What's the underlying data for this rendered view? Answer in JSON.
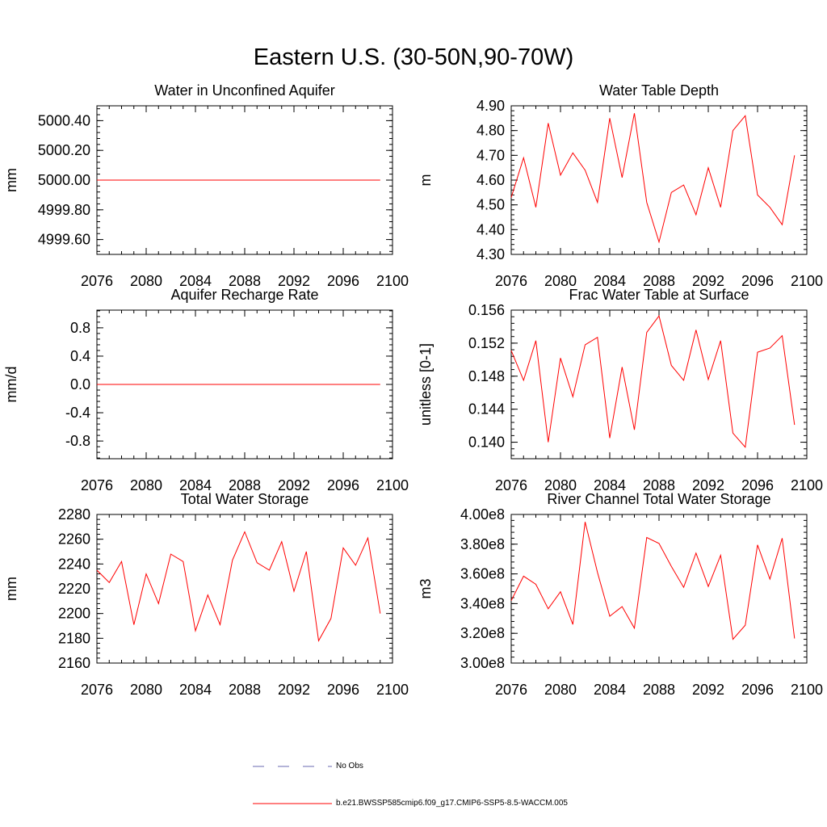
{
  "title": "Eastern U.S. (30-50N,90-70W)",
  "colors": {
    "model": "#ff0000",
    "obs": "#6a6ab0",
    "axis": "#000000"
  },
  "legend": {
    "obs_label": "No Obs",
    "model_label": "b.e21.BWSSP585cmip6.f09_g17.CMIP6-SSP5-8.5-WACCM.005"
  },
  "chart_data": [
    {
      "type": "line",
      "title": "Water in Unconfined Aquifer",
      "ylabel": "mm",
      "xlim": [
        2076,
        2100
      ],
      "ylim": [
        4999.5,
        5000.5
      ],
      "xticks": [
        2076,
        2080,
        2084,
        2088,
        2092,
        2096,
        2100
      ],
      "yticks": [
        4999.6,
        4999.8,
        5000.0,
        5000.2,
        5000.4
      ],
      "ytick_labels": [
        "4999.60",
        "4999.80",
        "5000.00",
        "5000.20",
        "5000.40"
      ],
      "x": [
        2076,
        2077,
        2078,
        2079,
        2080,
        2081,
        2082,
        2083,
        2084,
        2085,
        2086,
        2087,
        2088,
        2089,
        2090,
        2091,
        2092,
        2093,
        2094,
        2095,
        2096,
        2097,
        2098,
        2099
      ],
      "values": [
        5000.0,
        5000.0,
        5000.0,
        5000.0,
        5000.0,
        5000.0,
        5000.0,
        5000.0,
        5000.0,
        5000.0,
        5000.0,
        5000.0,
        5000.0,
        5000.0,
        5000.0,
        5000.0,
        5000.0,
        5000.0,
        5000.0,
        5000.0,
        5000.0,
        5000.0,
        5000.0,
        5000.0
      ]
    },
    {
      "type": "line",
      "title": "Water Table Depth",
      "ylabel": "m",
      "xlim": [
        2076,
        2100
      ],
      "ylim": [
        4.3,
        4.9
      ],
      "xticks": [
        2076,
        2080,
        2084,
        2088,
        2092,
        2096,
        2100
      ],
      "yticks": [
        4.3,
        4.4,
        4.5,
        4.6,
        4.7,
        4.8,
        4.9
      ],
      "ytick_labels": [
        "4.30",
        "4.40",
        "4.50",
        "4.60",
        "4.70",
        "4.80",
        "4.90"
      ],
      "x": [
        2076,
        2077,
        2078,
        2079,
        2080,
        2081,
        2082,
        2083,
        2084,
        2085,
        2086,
        2087,
        2088,
        2089,
        2090,
        2091,
        2092,
        2093,
        2094,
        2095,
        2096,
        2097,
        2098,
        2099
      ],
      "values": [
        4.53,
        4.69,
        4.49,
        4.83,
        4.62,
        4.71,
        4.64,
        4.51,
        4.85,
        4.61,
        4.87,
        4.51,
        4.35,
        4.55,
        4.58,
        4.46,
        4.65,
        4.49,
        4.8,
        4.86,
        4.54,
        4.49,
        4.42,
        4.7
      ]
    },
    {
      "type": "line",
      "title": "Aquifer Recharge Rate",
      "ylabel": "mm/d",
      "xlim": [
        2076,
        2100
      ],
      "ylim": [
        -1.05,
        1.05
      ],
      "xticks": [
        2076,
        2080,
        2084,
        2088,
        2092,
        2096,
        2100
      ],
      "yticks": [
        -0.8,
        -0.4,
        0.0,
        0.4,
        0.8
      ],
      "ytick_labels": [
        "-0.8",
        "-0.4",
        "0.0",
        "0.4",
        "0.8"
      ],
      "x": [
        2076,
        2077,
        2078,
        2079,
        2080,
        2081,
        2082,
        2083,
        2084,
        2085,
        2086,
        2087,
        2088,
        2089,
        2090,
        2091,
        2092,
        2093,
        2094,
        2095,
        2096,
        2097,
        2098,
        2099
      ],
      "values": [
        0,
        0,
        0,
        0,
        0,
        0,
        0,
        0,
        0,
        0,
        0,
        0,
        0,
        0,
        0,
        0,
        0,
        0,
        0,
        0,
        0,
        0,
        0,
        0
      ]
    },
    {
      "type": "line",
      "title": "Frac Water Table at Surface",
      "ylabel": "unitless [0-1]",
      "xlim": [
        2076,
        2100
      ],
      "ylim": [
        0.138,
        0.156
      ],
      "xticks": [
        2076,
        2080,
        2084,
        2088,
        2092,
        2096,
        2100
      ],
      "yticks": [
        0.14,
        0.144,
        0.148,
        0.152,
        0.156
      ],
      "ytick_labels": [
        "0.140",
        "0.144",
        "0.148",
        "0.152",
        "0.156"
      ],
      "x": [
        2076,
        2077,
        2078,
        2079,
        2080,
        2081,
        2082,
        2083,
        2084,
        2085,
        2086,
        2087,
        2088,
        2089,
        2090,
        2091,
        2092,
        2093,
        2094,
        2095,
        2096,
        2097,
        2098,
        2099
      ],
      "values": [
        0.1511,
        0.1475,
        0.1523,
        0.14,
        0.1502,
        0.1455,
        0.1518,
        0.1527,
        0.1405,
        0.1491,
        0.1415,
        0.1533,
        0.1553,
        0.1493,
        0.1475,
        0.1536,
        0.1476,
        0.1523,
        0.1411,
        0.1394,
        0.1509,
        0.1514,
        0.1529,
        0.1421
      ]
    },
    {
      "type": "line",
      "title": "Total Water Storage",
      "ylabel": "mm",
      "xlim": [
        2076,
        2100
      ],
      "ylim": [
        2160,
        2280
      ],
      "xticks": [
        2076,
        2080,
        2084,
        2088,
        2092,
        2096,
        2100
      ],
      "yticks": [
        2160,
        2180,
        2200,
        2220,
        2240,
        2260,
        2280
      ],
      "ytick_labels": [
        "2160",
        "2180",
        "2200",
        "2220",
        "2240",
        "2260",
        "2280"
      ],
      "x": [
        2076,
        2077,
        2078,
        2079,
        2080,
        2081,
        2082,
        2083,
        2084,
        2085,
        2086,
        2087,
        2088,
        2089,
        2090,
        2091,
        2092,
        2093,
        2094,
        2095,
        2096,
        2097,
        2098,
        2099
      ],
      "values": [
        2235,
        2225,
        2242,
        2191,
        2232,
        2208,
        2248,
        2242,
        2186,
        2215,
        2191,
        2243,
        2266,
        2241,
        2235,
        2258,
        2218,
        2250,
        2178,
        2196,
        2253,
        2239,
        2261,
        2200
      ]
    },
    {
      "type": "line",
      "title": "River Channel Total Water Storage",
      "ylabel": "m3",
      "xlim": [
        2076,
        2100
      ],
      "ylim": [
        300000000,
        400000000
      ],
      "xticks": [
        2076,
        2080,
        2084,
        2088,
        2092,
        2096,
        2100
      ],
      "yticks": [
        300000000,
        320000000,
        340000000,
        360000000,
        380000000,
        400000000
      ],
      "ytick_labels": [
        "3.00e8",
        "3.20e8",
        "3.40e8",
        "3.60e8",
        "3.80e8",
        "4.00e8"
      ],
      "x": [
        2076,
        2077,
        2078,
        2079,
        2080,
        2081,
        2082,
        2083,
        2084,
        2085,
        2086,
        2087,
        2088,
        2089,
        2090,
        2091,
        2092,
        2093,
        2094,
        2095,
        2096,
        2097,
        2098,
        2099
      ],
      "values": [
        342000000,
        358500000,
        353000000,
        336500000,
        348000000,
        326000000,
        395000000,
        361000000,
        331500000,
        338000000,
        323500000,
        384500000,
        380500000,
        365000000,
        351000000,
        374000000,
        351500000,
        372500000,
        316000000,
        325500000,
        379500000,
        356500000,
        384000000,
        316500000
      ]
    }
  ]
}
